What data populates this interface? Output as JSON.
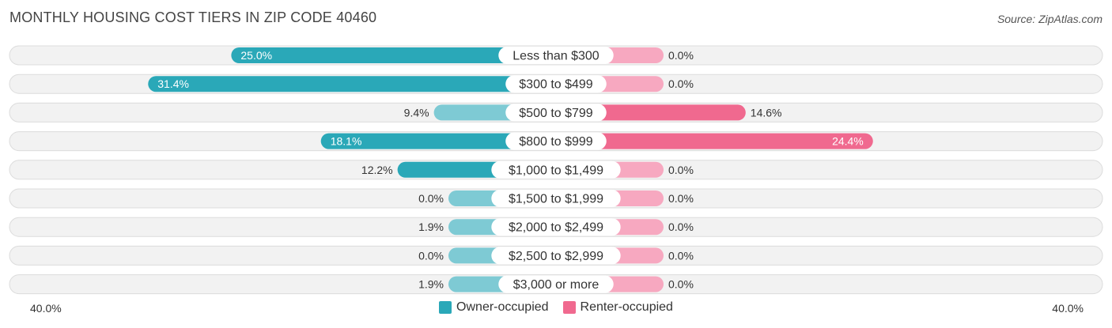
{
  "title": "MONTHLY HOUSING COST TIERS IN ZIP CODE 40460",
  "source": "Source: ZipAtlas.com",
  "axis": {
    "left_label": "40.0%",
    "right_label": "40.0%"
  },
  "legend": {
    "owner_label": "Owner-occupied",
    "renter_label": "Renter-occupied"
  },
  "colors": {
    "owner": "#2aa8b8",
    "owner_light": "#7ecad4",
    "renter": "#f0698f",
    "renter_light": "#f7a8c0",
    "row_bg": "#f2f2f2",
    "row_border": "#dcdcdc"
  },
  "chart_data": {
    "type": "bar",
    "orientation": "horizontal-diverging",
    "xlim": [
      -40,
      40
    ],
    "categories": [
      "Less than $300",
      "$300 to $499",
      "$500 to $799",
      "$800 to $999",
      "$1,000 to $1,499",
      "$1,500 to $1,999",
      "$2,000 to $2,499",
      "$2,500 to $2,999",
      "$3,000 or more"
    ],
    "series": [
      {
        "name": "Owner-occupied",
        "values": [
          25.0,
          31.4,
          9.4,
          18.1,
          12.2,
          0.0,
          1.9,
          0.0,
          1.9
        ],
        "labels": [
          "25.0%",
          "31.4%",
          "9.4%",
          "18.1%",
          "12.2%",
          "0.0%",
          "1.9%",
          "0.0%",
          "1.9%"
        ]
      },
      {
        "name": "Renter-occupied",
        "values": [
          0.0,
          0.0,
          14.6,
          24.4,
          0.0,
          0.0,
          0.0,
          0.0,
          0.0
        ],
        "labels": [
          "0.0%",
          "0.0%",
          "14.6%",
          "24.4%",
          "0.0%",
          "0.0%",
          "0.0%",
          "0.0%",
          "0.0%"
        ]
      }
    ],
    "legend_position": "bottom-center"
  }
}
